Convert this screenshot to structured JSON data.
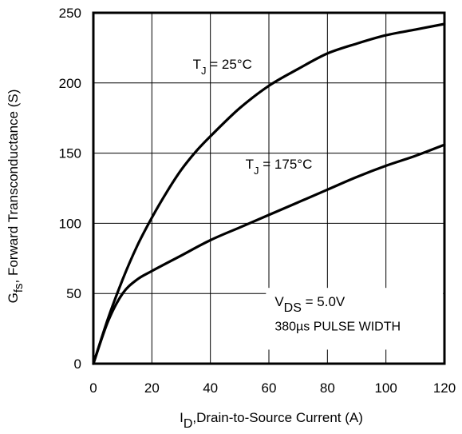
{
  "chart_data": {
    "type": "line",
    "xlabel_main": "I",
    "xlabel_sub": "D",
    "xlabel_rest": ",Drain-to-Source Current (A)",
    "ylabel_main": "G",
    "ylabel_sub": "fs",
    "ylabel_rest": ", Forward Transconductance (S)",
    "xlim": [
      0,
      120
    ],
    "ylim": [
      0,
      250
    ],
    "x_ticks": [
      "0",
      "20",
      "40",
      "60",
      "80",
      "100",
      "120"
    ],
    "y_ticks": [
      "0",
      "50",
      "100",
      "150",
      "200",
      "250"
    ],
    "grid": true,
    "series": [
      {
        "name": "T_J = 25°C",
        "label_main": "T",
        "label_sub": "J",
        "label_rest": " = 25°C",
        "x": [
          0,
          5,
          10,
          15,
          20,
          25,
          30,
          35,
          40,
          50,
          60,
          70,
          80,
          90,
          100,
          110,
          120
        ],
        "y": [
          0,
          32,
          60,
          84,
          104,
          122,
          138,
          151,
          162,
          182,
          198,
          210,
          221,
          228,
          234,
          238,
          242
        ]
      },
      {
        "name": "T_J = 175°C",
        "label_main": "T",
        "label_sub": "J",
        "label_rest": " = 175°C",
        "x": [
          0,
          5,
          10,
          15,
          20,
          30,
          40,
          50,
          60,
          70,
          80,
          90,
          100,
          110,
          120
        ],
        "y": [
          0,
          30,
          50,
          60,
          66,
          77,
          88,
          97,
          106,
          115,
          124,
          133,
          141,
          148,
          156
        ]
      }
    ],
    "annotations": {
      "vds_main": "V",
      "vds_sub": "DS",
      "vds_rest": " = 5.0V",
      "pulse": "380µs PULSE WIDTH"
    }
  }
}
